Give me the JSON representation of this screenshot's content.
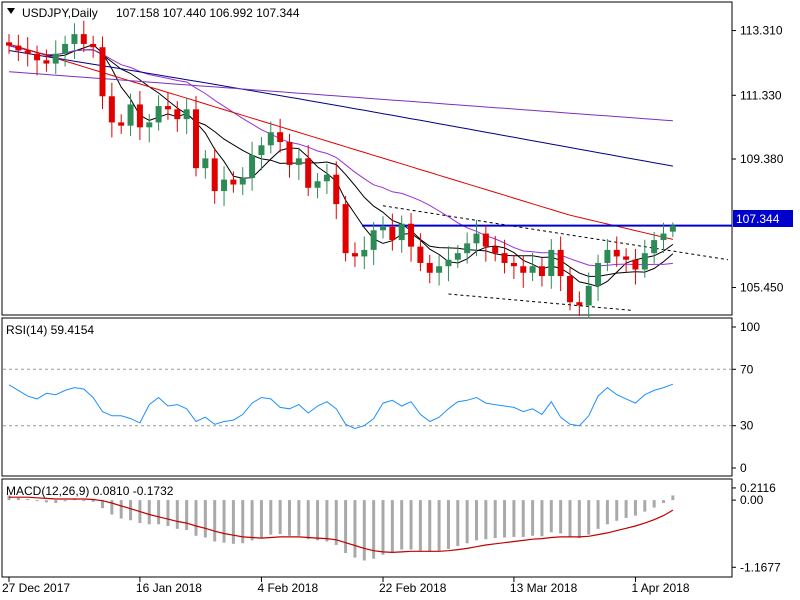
{
  "chart_data": [
    {
      "type": "candlestick",
      "title": "USDJPY,Daily",
      "ohlc_readout": "107.158 107.440 106.992 107.344",
      "last_price_label": "107.344",
      "y_ticks": [
        "113.310",
        "111.330",
        "109.380",
        "107.344",
        "105.450"
      ],
      "y_tick_values": [
        113.31,
        111.33,
        109.38,
        107.344,
        105.45
      ],
      "ylim": [
        104.7,
        114.0
      ],
      "x_tick_labels": [
        "27 Dec 2017",
        "16 Jan 2018",
        "4 Feb 2018",
        "22 Feb 2018",
        "13 Mar 2018",
        "1 Apr 2018"
      ],
      "x_tick_index": [
        0,
        14,
        27,
        40,
        54,
        67
      ],
      "up_color": "#2e8b57",
      "down_color": "#e00000",
      "closes": [
        112.85,
        112.7,
        112.6,
        112.4,
        112.3,
        112.6,
        112.9,
        113.2,
        112.9,
        112.8,
        111.3,
        110.5,
        110.4,
        111.05,
        110.35,
        110.5,
        111.0,
        110.9,
        110.6,
        110.9,
        109.1,
        109.4,
        108.4,
        108.75,
        108.6,
        108.8,
        109.5,
        109.8,
        110.2,
        109.9,
        109.2,
        109.4,
        108.5,
        108.7,
        108.9,
        108.0,
        106.5,
        106.4,
        106.6,
        107.2,
        107.3,
        106.9,
        107.4,
        106.7,
        106.2,
        105.9,
        106.1,
        106.3,
        106.5,
        106.8,
        107.1,
        106.7,
        106.5,
        106.2,
        106.1,
        105.9,
        106.1,
        105.8,
        106.6,
        105.8,
        105.0,
        104.9,
        105.5,
        106.2,
        106.6,
        106.4,
        106.3,
        106.0,
        106.5,
        106.9,
        107.1,
        107.344
      ],
      "rsi": {
        "label": "RSI(14) 59.4154",
        "levels": [
          100,
          70,
          30,
          0
        ],
        "values": [
          59,
          55,
          51,
          49,
          53,
          52,
          55,
          57,
          56,
          50,
          40,
          37,
          37,
          35,
          32,
          45,
          50,
          44,
          45,
          42,
          33,
          36,
          31,
          33,
          34,
          38,
          46,
          50,
          49,
          43,
          42,
          45,
          39,
          44,
          47,
          42,
          31,
          28,
          30,
          35,
          46,
          48,
          44,
          47,
          38,
          33,
          36,
          42,
          47,
          48,
          50,
          46,
          45,
          44,
          43,
          40,
          42,
          38,
          47,
          36,
          31,
          30,
          37,
          51,
          57,
          52,
          49,
          46,
          52,
          55,
          57,
          59.4154
        ]
      },
      "macd": {
        "label": "MACD(12,26,9) 0.0810 -0.1732",
        "ticks": [
          "0.2116",
          "0.00",
          "-1.1677"
        ],
        "tick_values": [
          0.2116,
          0.0,
          -1.1677
        ],
        "ylim": [
          -1.25,
          0.28
        ],
        "histogram": [
          0.08,
          0.04,
          0.02,
          0.0,
          -0.04,
          -0.05,
          -0.02,
          0.02,
          0.0,
          -0.03,
          -0.14,
          -0.25,
          -0.32,
          -0.35,
          -0.4,
          -0.42,
          -0.42,
          -0.45,
          -0.5,
          -0.52,
          -0.62,
          -0.65,
          -0.72,
          -0.74,
          -0.76,
          -0.75,
          -0.7,
          -0.66,
          -0.6,
          -0.59,
          -0.62,
          -0.62,
          -0.68,
          -0.7,
          -0.72,
          -0.78,
          -0.92,
          -1.0,
          -1.05,
          -1.02,
          -0.95,
          -0.92,
          -0.86,
          -0.86,
          -0.88,
          -0.9,
          -0.88,
          -0.85,
          -0.8,
          -0.75,
          -0.7,
          -0.68,
          -0.66,
          -0.65,
          -0.64,
          -0.64,
          -0.62,
          -0.63,
          -0.56,
          -0.58,
          -0.64,
          -0.66,
          -0.6,
          -0.5,
          -0.42,
          -0.36,
          -0.31,
          -0.27,
          -0.2,
          -0.13,
          -0.05,
          0.081
        ],
        "signal": [
          0.05,
          0.05,
          0.05,
          0.04,
          0.03,
          0.02,
          0.02,
          0.02,
          0.02,
          0.01,
          -0.01,
          -0.05,
          -0.1,
          -0.15,
          -0.2,
          -0.25,
          -0.29,
          -0.33,
          -0.37,
          -0.4,
          -0.45,
          -0.49,
          -0.54,
          -0.58,
          -0.61,
          -0.64,
          -0.65,
          -0.66,
          -0.65,
          -0.64,
          -0.64,
          -0.64,
          -0.65,
          -0.66,
          -0.67,
          -0.69,
          -0.74,
          -0.79,
          -0.84,
          -0.88,
          -0.9,
          -0.91,
          -0.9,
          -0.89,
          -0.89,
          -0.89,
          -0.89,
          -0.88,
          -0.86,
          -0.84,
          -0.81,
          -0.78,
          -0.76,
          -0.74,
          -0.72,
          -0.7,
          -0.68,
          -0.67,
          -0.65,
          -0.64,
          -0.64,
          -0.64,
          -0.63,
          -0.6,
          -0.57,
          -0.53,
          -0.49,
          -0.45,
          -0.4,
          -0.34,
          -0.27,
          -0.1732
        ],
        "hist_color": "#a9a9a9",
        "signal_color": "#c00000"
      },
      "overlays": {
        "ma_colors": [
          "#000000",
          "#000000",
          "#9b30d9",
          "#e00000",
          "#000080",
          "#7b2fbe"
        ],
        "resistance_line": 107.344,
        "resistance_color": "#0000cc",
        "rsi_line_color": "#1e90ff"
      }
    }
  ]
}
